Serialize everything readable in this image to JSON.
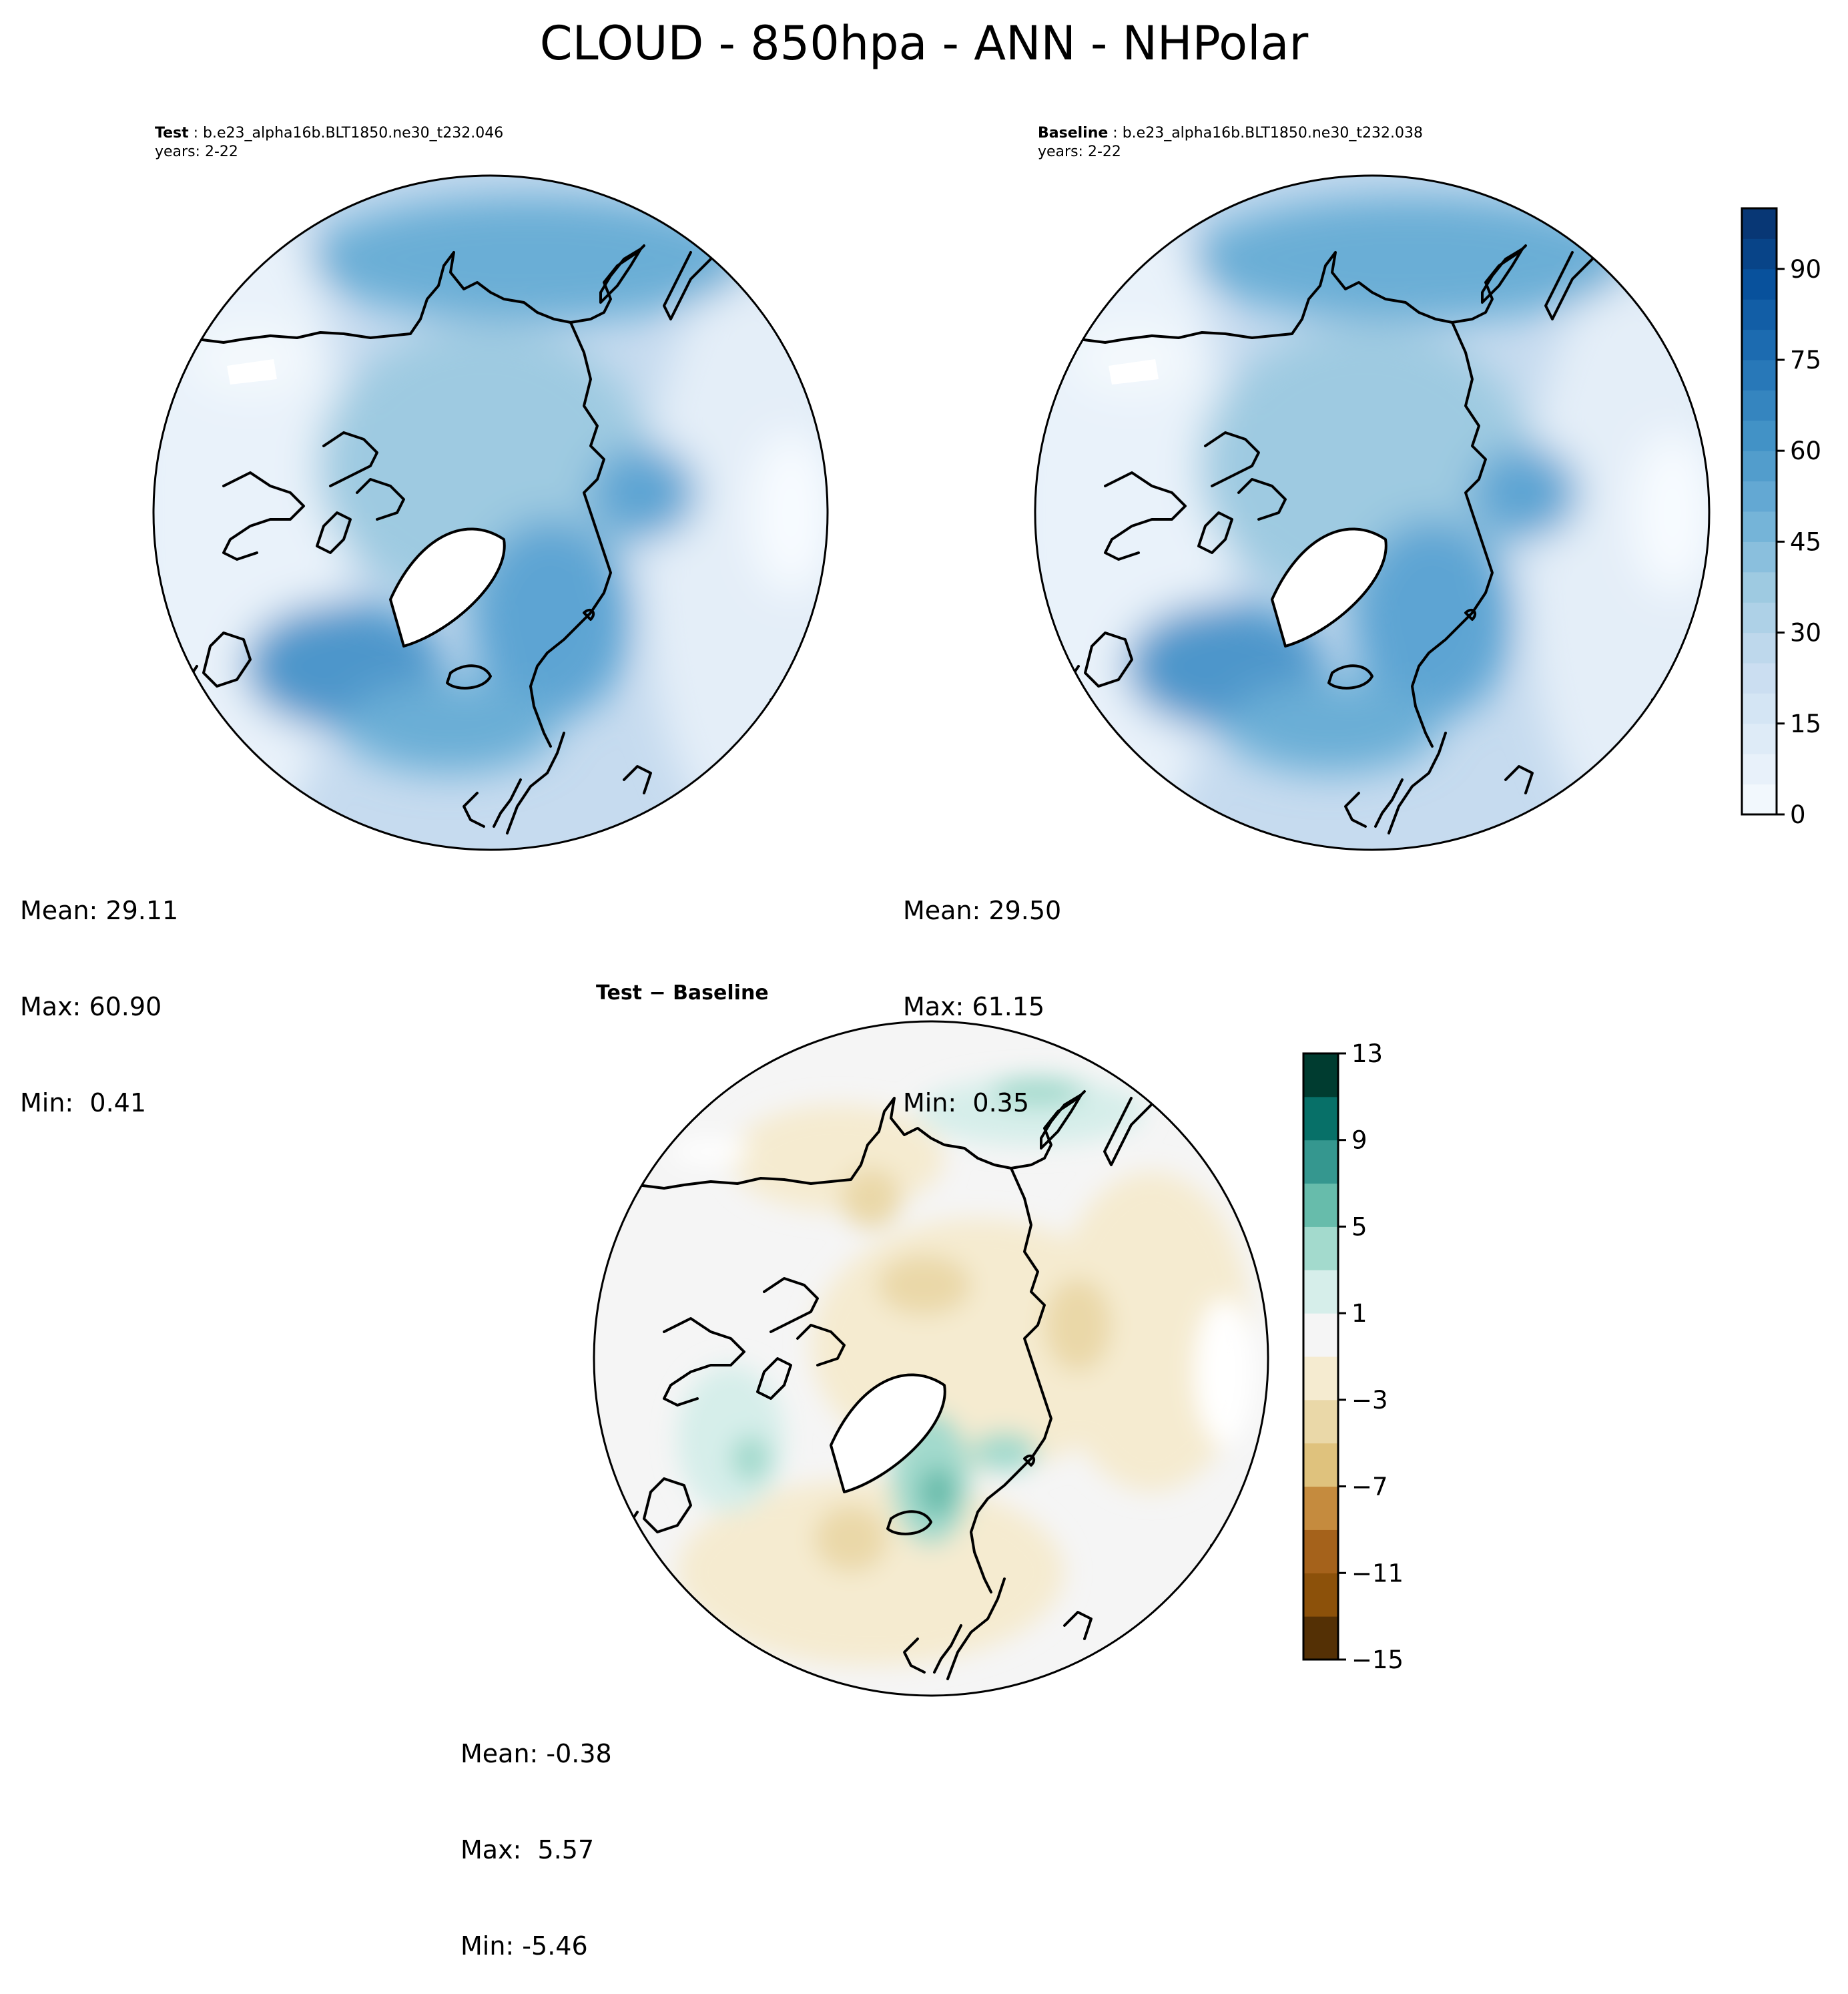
{
  "figure": {
    "title": "CLOUD - 850hpa - ANN - NHPolar"
  },
  "panels": {
    "test": {
      "label": "Test",
      "case": "b.e23_alpha16b.BLT1850.ne30_t232.046",
      "years": "years: 2-22",
      "stats": {
        "mean": "Mean: 29.11",
        "max": "Max: 60.90",
        "min": "Min:  0.41"
      }
    },
    "baseline": {
      "label": "Baseline",
      "case": "b.e23_alpha16b.BLT1850.ne30_t232.038",
      "years": "years: 2-22",
      "stats": {
        "mean": "Mean: 29.50",
        "max": "Max: 61.15",
        "min": "Min:  0.35"
      }
    },
    "diff": {
      "title_a": "Test",
      "title_sep": " − ",
      "title_b": "Baseline",
      "stats": {
        "mean": "Mean: -0.38",
        "max": "Max:  5.57",
        "min": "Min: -5.46"
      }
    }
  },
  "colorbars": {
    "main": {
      "min": 0,
      "max": 100,
      "levels": 20,
      "ticks": [
        0,
        15,
        30,
        45,
        60,
        75,
        90
      ],
      "tick_labels": [
        "0",
        "15",
        "30",
        "45",
        "60",
        "75",
        "90"
      ],
      "colormap": "Blues"
    },
    "diff": {
      "min": -15,
      "max": 13,
      "levels": 14,
      "ticks": [
        -15,
        -11,
        -7,
        -3,
        1,
        5,
        9,
        13
      ],
      "tick_labels": [
        "−15",
        "−11",
        "−7",
        "−3",
        "1",
        "5",
        "9",
        "13"
      ],
      "colormap": "BrBG",
      "colors": [
        "#543005",
        "#8c510a",
        "#a5621b",
        "#c58b3e",
        "#dfc27d",
        "#ead8a8",
        "#f5ebd0",
        "#f5f5f5",
        "#d6eeea",
        "#a3dacd",
        "#67bcab",
        "#35978f",
        "#077068",
        "#003c30"
      ]
    }
  }
}
